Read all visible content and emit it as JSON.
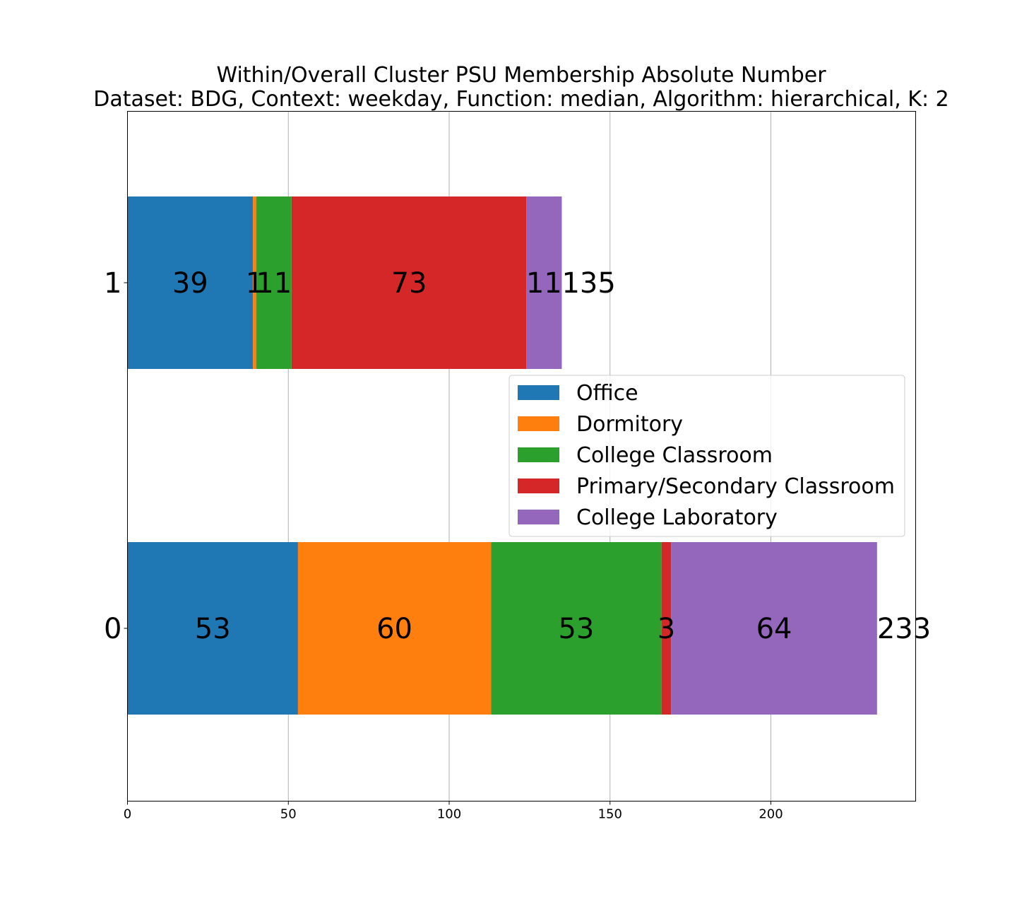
{
  "chart_data": {
    "type": "bar",
    "orientation": "horizontal",
    "stacked": true,
    "title": "Within/Overall Cluster PSU Membership Absolute Number",
    "subtitle": "Dataset: BDG, Context: weekday, Function: median, Algorithm: hierarchical, K: 2",
    "categories": [
      "0",
      "1"
    ],
    "series": [
      {
        "name": "Office",
        "color": "#1f77b4",
        "values": [
          53,
          39
        ]
      },
      {
        "name": "Dormitory",
        "color": "#ff7f0e",
        "values": [
          60,
          1
        ]
      },
      {
        "name": "College Classroom",
        "color": "#2ca02c",
        "values": [
          53,
          11
        ]
      },
      {
        "name": "Primary/Secondary Classroom",
        "color": "#d62728",
        "values": [
          3,
          73
        ]
      },
      {
        "name": "College Laboratory",
        "color": "#9467bd",
        "values": [
          64,
          11
        ]
      }
    ],
    "totals": [
      233,
      135
    ],
    "xlim": [
      0,
      245
    ],
    "xticks": [
      0,
      50,
      100,
      150,
      200
    ],
    "grid": true,
    "legend_position": "center-right",
    "xlabel": "",
    "ylabel": ""
  }
}
